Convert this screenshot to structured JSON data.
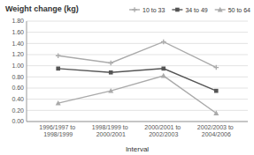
{
  "chart_data": {
    "type": "line",
    "title": "Weight change (kg)",
    "x_label": "Interval",
    "categories": [
      "1996/1997 to 1998/1999",
      "1998/1999 to 2000/2001",
      "2000/2001 to 2002/2003",
      "2002/2003 to 2004/2006"
    ],
    "series": [
      {
        "name": "10 to 33",
        "color": "#aaaaaa",
        "marker": "plus",
        "values": [
          1.18,
          1.05,
          1.43,
          0.97
        ]
      },
      {
        "name": "34 to 49",
        "color": "#555555",
        "marker": "square",
        "values": [
          0.95,
          0.88,
          0.95,
          0.55
        ]
      },
      {
        "name": "50 to 64",
        "color": "#aaaaaa",
        "marker": "triangle",
        "values": [
          0.33,
          0.55,
          0.82,
          0.15
        ]
      }
    ],
    "ylim": [
      0.0,
      1.8
    ],
    "yticks": [
      {
        "value": 0.0,
        "label": "0.00"
      },
      {
        "value": 0.2,
        "label": "0.20"
      },
      {
        "value": 0.4,
        "label": "0.40"
      },
      {
        "value": 0.6,
        "label": "0.60"
      },
      {
        "value": 0.8,
        "label": "0.80"
      },
      {
        "value": 1.0,
        "label": "1.00"
      },
      {
        "value": 1.2,
        "label": "1.20"
      },
      {
        "value": 1.4,
        "label": "1.40"
      },
      {
        "value": 1.6,
        "label": "1.60"
      },
      {
        "value": 1.8,
        "label": "1.80"
      }
    ],
    "grid": true,
    "legend": "upper right"
  }
}
